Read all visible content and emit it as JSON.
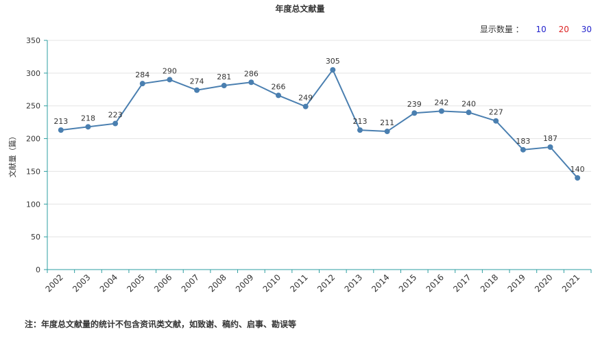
{
  "header": {
    "title": "年度总文献量"
  },
  "count_selector": {
    "label": "显示数量 ：",
    "options": [
      {
        "label": "10",
        "color": "#2222cc"
      },
      {
        "label": "20",
        "color": "#dd2222"
      },
      {
        "label": "30",
        "color": "#2222cc"
      }
    ]
  },
  "footnote": {
    "text": "注：年度总文献量的统计不包含资讯类文献，如致谢、稿约、启事、勘误等"
  },
  "chart_data": {
    "type": "line",
    "title": "年度总文献量",
    "xlabel": "",
    "ylabel": "文献量（篇）",
    "x": [
      "2002",
      "2003",
      "2004",
      "2005",
      "2006",
      "2007",
      "2008",
      "2009",
      "2010",
      "2011",
      "2012",
      "2013",
      "2014",
      "2015",
      "2016",
      "2017",
      "2018",
      "2019",
      "2020",
      "2021"
    ],
    "series": [
      {
        "values": [
          213,
          218,
          223,
          284,
          290,
          274,
          281,
          286,
          266,
          249,
          305,
          213,
          211,
          239,
          242,
          240,
          227,
          183,
          187,
          140
        ]
      }
    ],
    "ylim": [
      0,
      350
    ],
    "yticks": [
      0,
      50,
      100,
      150,
      200,
      250,
      300,
      350
    ],
    "grid": true,
    "line_color": "#4a7fb0",
    "axis_color": "#2b9ea0",
    "grid_color": "#e3e3e3"
  }
}
